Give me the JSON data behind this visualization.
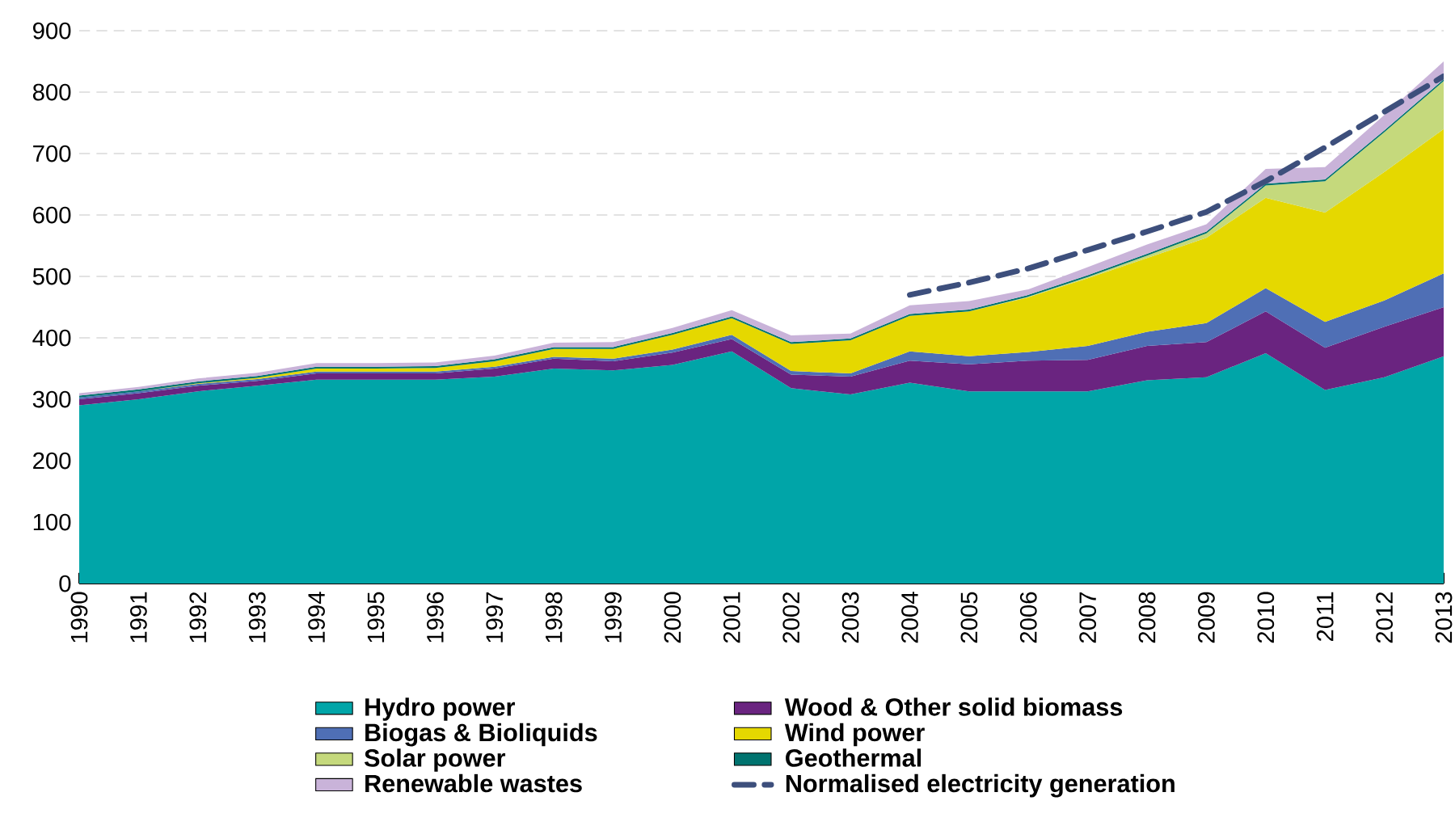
{
  "chart_data": {
    "type": "area",
    "stacked": true,
    "categories": [
      "1990",
      "1991",
      "1992",
      "1993",
      "1994",
      "1995",
      "1996",
      "1997",
      "1998",
      "1999",
      "2000",
      "2001",
      "2002",
      "2003",
      "2004",
      "2005",
      "2006",
      "2007",
      "2008",
      "2009",
      "2010",
      "2011",
      "2012",
      "2013"
    ],
    "series": [
      {
        "name": "Hydro power",
        "color": "#00a5a8",
        "values": [
          290,
          300,
          313,
          322,
          332,
          332,
          332,
          337,
          350,
          347,
          356,
          378,
          318,
          308,
          327,
          313,
          313,
          313,
          331,
          336,
          375,
          315,
          336,
          370
        ]
      },
      {
        "name": "Wood & Other solid biomass",
        "color": "#6a2480",
        "values": [
          10,
          10,
          9,
          8,
          10,
          10,
          10,
          13,
          16,
          15,
          20,
          20,
          22,
          29,
          36,
          44,
          50,
          51,
          56,
          57,
          68,
          69,
          82,
          80
        ]
      },
      {
        "name": "Biogas & Bioliquids",
        "color": "#4f6fb5",
        "values": [
          3,
          3,
          3,
          3,
          3,
          3,
          3,
          3,
          3,
          4,
          5,
          7,
          6,
          5,
          15,
          13,
          14,
          23,
          23,
          31,
          38,
          42,
          43,
          55
        ]
      },
      {
        "name": "Wind power",
        "color": "#e5d800",
        "values": [
          0,
          0,
          1,
          2,
          5,
          5,
          6,
          9,
          13,
          16,
          24,
          27,
          44,
          54,
          58,
          73,
          89,
          110,
          120,
          139,
          147,
          178,
          209,
          235
        ]
      },
      {
        "name": "Solar power",
        "color": "#c5d97c",
        "values": [
          0,
          0,
          0,
          0,
          0,
          0,
          0,
          0,
          0,
          0,
          0,
          0,
          0,
          0,
          0,
          0,
          1,
          2,
          4,
          7,
          20,
          51,
          65,
          78
        ]
      },
      {
        "name": "Geothermal",
        "color": "#00736f",
        "values": [
          3,
          3,
          3,
          3,
          3,
          3,
          3,
          3,
          3,
          3,
          3,
          3,
          3,
          3,
          3,
          3,
          3,
          3,
          3,
          3,
          3,
          3,
          3,
          3
        ]
      },
      {
        "name": "Renewable wastes",
        "color": "#c9b3d9",
        "values": [
          4,
          4,
          5,
          5,
          6,
          6,
          6,
          6,
          7,
          8,
          8,
          10,
          11,
          8,
          14,
          14,
          9,
          13,
          15,
          12,
          24,
          20,
          25,
          29
        ]
      },
      {
        "name": "Normalised electricity generation",
        "type": "line",
        "line_style": "dashed",
        "color": "#3d4f7c",
        "values": [
          null,
          null,
          null,
          null,
          null,
          null,
          null,
          null,
          null,
          null,
          null,
          null,
          null,
          null,
          470,
          490,
          513,
          543,
          573,
          605,
          655,
          710,
          768,
          826
        ]
      }
    ],
    "ylim": [
      0,
      900
    ],
    "yticks": [
      0,
      100,
      200,
      300,
      400,
      500,
      600,
      700,
      800,
      900
    ],
    "grid": "y",
    "legend": "bottom"
  }
}
